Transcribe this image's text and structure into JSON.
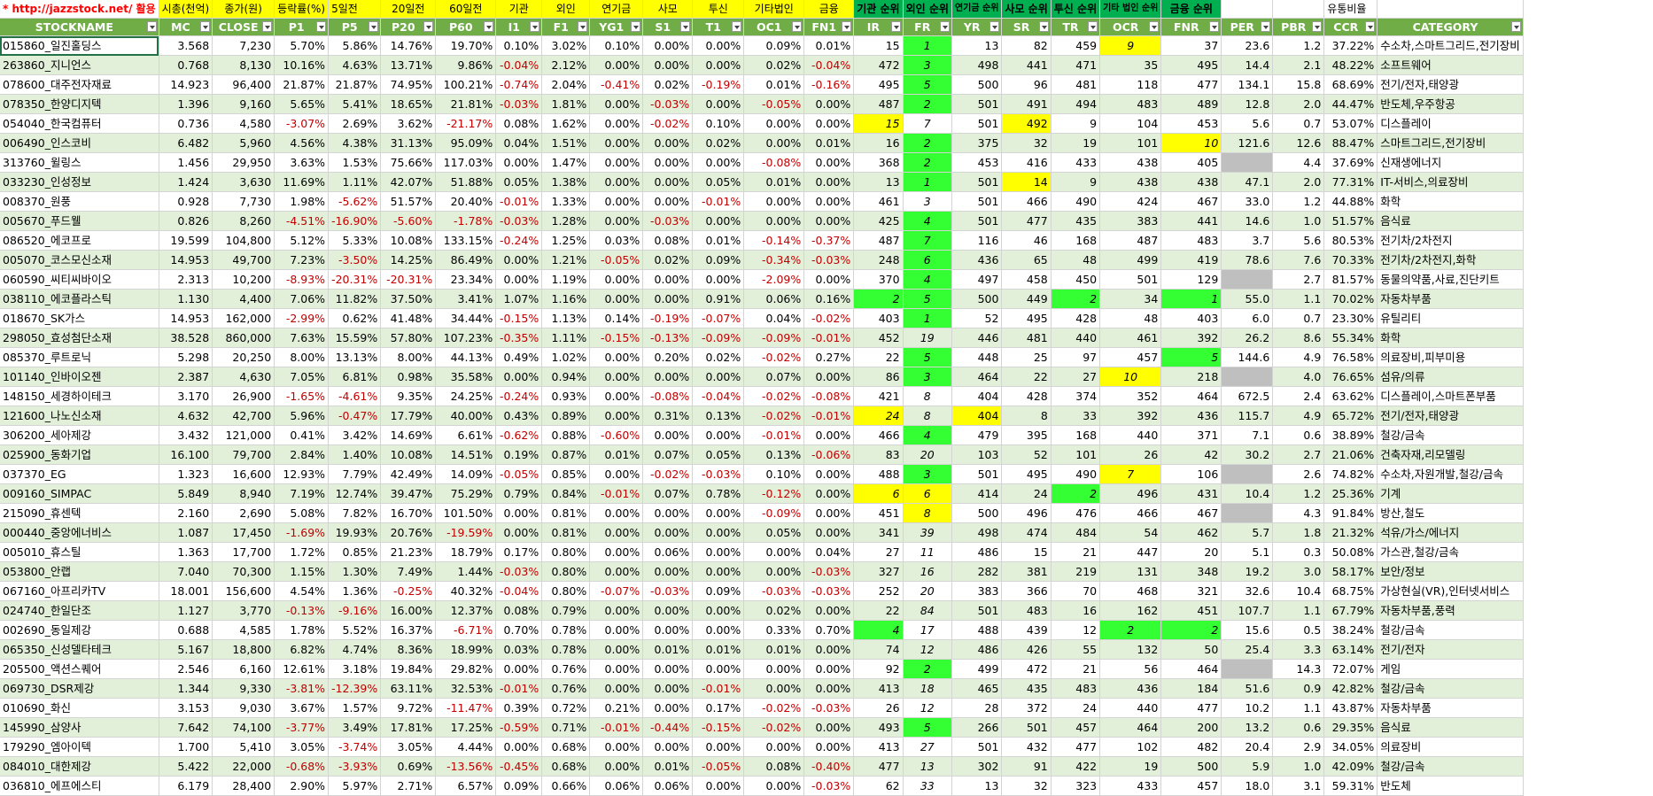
{
  "top_labels": [
    "* http://jazzstock.net/ 활용",
    "시총(천억)",
    "종가(원)",
    "등락률(%)",
    "5일전",
    "20일전",
    "60일전",
    "기관",
    "외인",
    "연기금",
    "사모",
    "투신",
    "기타법인",
    "금융",
    "기관 순위",
    "외인 순위",
    "연기금 순위",
    "사모 순위",
    "투신 순위",
    "기타 법인 순위",
    "금융 순위",
    "",
    "",
    "유통비율",
    ""
  ],
  "headers": [
    "STOCKNAME",
    "MC",
    "CLOSE",
    "P1",
    "P5",
    "P20",
    "P60",
    "I1",
    "F1",
    "YG1",
    "S1",
    "T1",
    "OC1",
    "FN1",
    "IR",
    "FR",
    "YR",
    "SR",
    "TR",
    "OCR",
    "FNR",
    "PER",
    "PBR",
    "CCR",
    "CATEGORY"
  ],
  "rows": [
    [
      "015860_일진홀딩스",
      "3.568",
      "7,230",
      "5.70%",
      "5.86%",
      "14.76%",
      "19.70%",
      "0.10%",
      "3.02%",
      "0.10%",
      "0.00%",
      "0.00%",
      "0.09%",
      "0.01%",
      "15",
      "1",
      "13",
      "82",
      "459",
      "9",
      "37",
      "23.6",
      "1.2",
      "37.22%",
      "수소차,스마트그리드,전기장비"
    ],
    [
      "263860_지니언스",
      "0.768",
      "8,130",
      "10.16%",
      "4.63%",
      "13.71%",
      "9.86%",
      "-0.04%",
      "2.12%",
      "0.00%",
      "0.00%",
      "0.00%",
      "0.02%",
      "-0.04%",
      "472",
      "3",
      "498",
      "441",
      "471",
      "35",
      "495",
      "14.4",
      "2.1",
      "48.22%",
      "소프트웨어"
    ],
    [
      "078600_대주전자재료",
      "14.923",
      "96,400",
      "21.87%",
      "21.87%",
      "74.95%",
      "100.21%",
      "-0.74%",
      "2.04%",
      "-0.41%",
      "0.02%",
      "-0.19%",
      "0.01%",
      "-0.16%",
      "495",
      "5",
      "500",
      "96",
      "481",
      "118",
      "477",
      "134.1",
      "15.8",
      "68.69%",
      "전기/전자,태양광"
    ],
    [
      "078350_한양디지텍",
      "1.396",
      "9,160",
      "5.65%",
      "5.41%",
      "18.65%",
      "21.81%",
      "-0.03%",
      "1.81%",
      "0.00%",
      "-0.03%",
      "0.00%",
      "-0.05%",
      "0.00%",
      "487",
      "2",
      "501",
      "491",
      "494",
      "483",
      "489",
      "12.8",
      "2.0",
      "44.47%",
      "반도체,우주항공"
    ],
    [
      "054040_한국컴퓨터",
      "0.736",
      "4,580",
      "-3.07%",
      "2.69%",
      "3.62%",
      "-21.17%",
      "0.08%",
      "1.62%",
      "0.00%",
      "-0.02%",
      "0.10%",
      "0.00%",
      "0.00%",
      "15",
      "7",
      "501",
      "492",
      "9",
      "104",
      "453",
      "5.6",
      "0.7",
      "53.07%",
      "디스플레이"
    ],
    [
      "006490_인스코비",
      "6.482",
      "5,960",
      "4.56%",
      "4.38%",
      "31.13%",
      "95.09%",
      "0.04%",
      "1.51%",
      "0.00%",
      "0.00%",
      "0.02%",
      "0.00%",
      "0.01%",
      "16",
      "2",
      "375",
      "32",
      "19",
      "101",
      "10",
      "121.6",
      "12.6",
      "88.47%",
      "스마트그리드,전기장비"
    ],
    [
      "313760_윌링스",
      "1.456",
      "29,950",
      "3.63%",
      "1.53%",
      "75.66%",
      "117.03%",
      "0.00%",
      "1.47%",
      "0.00%",
      "0.00%",
      "0.00%",
      "-0.08%",
      "0.00%",
      "368",
      "2",
      "453",
      "416",
      "433",
      "438",
      "405",
      "",
      "4.4",
      "37.69%",
      "신재생에너지"
    ],
    [
      "033230_인성정보",
      "1.424",
      "3,630",
      "11.69%",
      "1.11%",
      "42.07%",
      "51.88%",
      "0.05%",
      "1.38%",
      "0.00%",
      "0.00%",
      "0.05%",
      "0.01%",
      "0.00%",
      "13",
      "1",
      "501",
      "14",
      "9",
      "438",
      "438",
      "47.1",
      "2.0",
      "77.31%",
      "IT-서비스,의료장비"
    ],
    [
      "008370_원풍",
      "0.928",
      "7,730",
      "1.98%",
      "-5.62%",
      "51.57%",
      "20.40%",
      "-0.01%",
      "1.33%",
      "0.00%",
      "0.00%",
      "-0.01%",
      "0.00%",
      "0.00%",
      "461",
      "3",
      "501",
      "466",
      "490",
      "424",
      "467",
      "33.0",
      "1.2",
      "44.88%",
      "화학"
    ],
    [
      "005670_푸드웰",
      "0.826",
      "8,260",
      "-4.51%",
      "-16.90%",
      "-5.60%",
      "-1.78%",
      "-0.03%",
      "1.28%",
      "0.00%",
      "-0.03%",
      "0.00%",
      "0.00%",
      "0.00%",
      "425",
      "4",
      "501",
      "477",
      "435",
      "383",
      "441",
      "14.6",
      "1.0",
      "51.57%",
      "음식료"
    ],
    [
      "086520_에코프로",
      "19.599",
      "104,800",
      "5.12%",
      "5.33%",
      "10.08%",
      "133.15%",
      "-0.24%",
      "1.25%",
      "0.03%",
      "0.08%",
      "0.01%",
      "-0.14%",
      "-0.37%",
      "487",
      "7",
      "116",
      "46",
      "168",
      "487",
      "483",
      "3.7",
      "5.6",
      "80.53%",
      "전기차/2차전지"
    ],
    [
      "005070_코스모신소재",
      "14.953",
      "49,700",
      "7.23%",
      "-3.50%",
      "14.25%",
      "86.49%",
      "0.00%",
      "1.21%",
      "-0.05%",
      "0.02%",
      "0.09%",
      "-0.34%",
      "-0.03%",
      "248",
      "6",
      "436",
      "65",
      "48",
      "499",
      "419",
      "78.6",
      "7.6",
      "70.33%",
      "전기차/2차전지,화학"
    ],
    [
      "060590_씨티씨바이오",
      "2.313",
      "10,200",
      "-8.93%",
      "-20.31%",
      "-20.31%",
      "23.34%",
      "0.00%",
      "1.19%",
      "0.00%",
      "0.00%",
      "0.00%",
      "-2.09%",
      "0.00%",
      "370",
      "4",
      "497",
      "458",
      "450",
      "501",
      "129",
      "",
      "2.7",
      "81.57%",
      "동물의약품,사료,진단키트"
    ],
    [
      "038110_에코플라스틱",
      "1.130",
      "4,400",
      "7.06%",
      "11.82%",
      "37.50%",
      "3.41%",
      "1.07%",
      "1.16%",
      "0.00%",
      "0.00%",
      "0.91%",
      "0.06%",
      "0.16%",
      "2",
      "5",
      "500",
      "449",
      "2",
      "34",
      "1",
      "55.0",
      "1.1",
      "70.02%",
      "자동차부품"
    ],
    [
      "018670_SK가스",
      "14.953",
      "162,000",
      "-2.99%",
      "0.62%",
      "41.48%",
      "34.44%",
      "-0.15%",
      "1.13%",
      "0.14%",
      "-0.19%",
      "-0.07%",
      "0.04%",
      "-0.02%",
      "403",
      "1",
      "52",
      "495",
      "428",
      "48",
      "403",
      "6.0",
      "0.7",
      "23.30%",
      "유틸리티"
    ],
    [
      "298050_효성첨단소재",
      "38.528",
      "860,000",
      "7.63%",
      "15.59%",
      "57.80%",
      "107.23%",
      "-0.35%",
      "1.11%",
      "-0.15%",
      "-0.13%",
      "-0.09%",
      "-0.09%",
      "-0.01%",
      "452",
      "19",
      "446",
      "481",
      "440",
      "461",
      "392",
      "26.2",
      "8.6",
      "55.34%",
      "화학"
    ],
    [
      "085370_루트로닉",
      "5.298",
      "20,250",
      "8.00%",
      "13.13%",
      "8.00%",
      "44.13%",
      "0.49%",
      "1.02%",
      "0.00%",
      "0.20%",
      "0.02%",
      "-0.02%",
      "0.27%",
      "22",
      "5",
      "448",
      "25",
      "97",
      "457",
      "5",
      "144.6",
      "4.9",
      "76.58%",
      "의료장비,피부미용"
    ],
    [
      "101140_인바이오젠",
      "2.387",
      "4,630",
      "7.05%",
      "6.81%",
      "0.98%",
      "35.58%",
      "0.00%",
      "0.94%",
      "0.00%",
      "0.00%",
      "0.00%",
      "0.07%",
      "0.00%",
      "86",
      "3",
      "464",
      "22",
      "27",
      "10",
      "218",
      "",
      "4.0",
      "76.65%",
      "섬유/의류"
    ],
    [
      "148150_세경하이테크",
      "3.170",
      "26,900",
      "-1.65%",
      "-4.61%",
      "9.35%",
      "24.25%",
      "-0.24%",
      "0.93%",
      "0.00%",
      "-0.08%",
      "-0.04%",
      "-0.02%",
      "-0.08%",
      "421",
      "8",
      "404",
      "428",
      "374",
      "352",
      "464",
      "672.5",
      "2.4",
      "63.62%",
      "디스플레이,스마트폰부품"
    ],
    [
      "121600_나노신소재",
      "4.632",
      "42,700",
      "5.96%",
      "-0.47%",
      "17.79%",
      "40.00%",
      "0.43%",
      "0.89%",
      "0.00%",
      "0.31%",
      "0.13%",
      "-0.02%",
      "-0.01%",
      "24",
      "8",
      "404",
      "8",
      "33",
      "392",
      "436",
      "115.7",
      "4.9",
      "65.72%",
      "전기/전자,태양광"
    ],
    [
      "306200_세아제강",
      "3.432",
      "121,000",
      "0.41%",
      "3.42%",
      "14.69%",
      "6.61%",
      "-0.62%",
      "0.88%",
      "-0.60%",
      "0.00%",
      "0.00%",
      "-0.01%",
      "0.00%",
      "466",
      "4",
      "479",
      "395",
      "168",
      "440",
      "371",
      "7.1",
      "0.6",
      "38.89%",
      "철강/금속"
    ],
    [
      "025900_동화기업",
      "16.100",
      "79,700",
      "2.84%",
      "1.40%",
      "10.08%",
      "14.51%",
      "0.19%",
      "0.87%",
      "0.01%",
      "0.07%",
      "0.05%",
      "0.13%",
      "-0.06%",
      "83",
      "20",
      "103",
      "52",
      "101",
      "26",
      "42",
      "30.2",
      "2.7",
      "21.06%",
      "건축자재,리모델링"
    ],
    [
      "037370_EG",
      "1.323",
      "16,600",
      "12.93%",
      "7.79%",
      "42.49%",
      "14.09%",
      "-0.05%",
      "0.85%",
      "0.00%",
      "-0.02%",
      "-0.03%",
      "0.10%",
      "0.00%",
      "488",
      "3",
      "501",
      "495",
      "490",
      "7",
      "106",
      "",
      "2.6",
      "74.82%",
      "수소차,자원개발,철강/금속"
    ],
    [
      "009160_SIMPAC",
      "5.849",
      "8,940",
      "7.19%",
      "12.74%",
      "39.47%",
      "75.29%",
      "0.79%",
      "0.84%",
      "-0.01%",
      "0.07%",
      "0.78%",
      "-0.12%",
      "0.00%",
      "6",
      "6",
      "414",
      "24",
      "2",
      "496",
      "431",
      "10.4",
      "1.2",
      "25.36%",
      "기계"
    ],
    [
      "215090_휴센텍",
      "2.160",
      "2,690",
      "5.08%",
      "7.82%",
      "16.70%",
      "101.50%",
      "0.00%",
      "0.81%",
      "0.00%",
      "0.00%",
      "0.00%",
      "-0.09%",
      "0.00%",
      "451",
      "8",
      "500",
      "496",
      "476",
      "466",
      "467",
      "",
      "4.3",
      "91.84%",
      "방산,철도"
    ],
    [
      "000440_중앙에너비스",
      "1.087",
      "17,450",
      "-1.69%",
      "19.93%",
      "20.76%",
      "-19.59%",
      "0.00%",
      "0.81%",
      "0.00%",
      "0.00%",
      "0.00%",
      "0.05%",
      "0.00%",
      "341",
      "39",
      "498",
      "474",
      "484",
      "54",
      "462",
      "5.7",
      "1.8",
      "21.32%",
      "석유/가스/에너지"
    ],
    [
      "005010_휴스틸",
      "1.363",
      "17,700",
      "1.72%",
      "0.85%",
      "21.23%",
      "18.79%",
      "0.17%",
      "0.80%",
      "0.00%",
      "0.06%",
      "0.00%",
      "0.00%",
      "0.04%",
      "27",
      "11",
      "486",
      "15",
      "21",
      "447",
      "20",
      "5.1",
      "0.3",
      "50.08%",
      "가스관,철강/금속"
    ],
    [
      "053800_안랩",
      "7.040",
      "70,300",
      "1.15%",
      "1.30%",
      "7.49%",
      "1.44%",
      "-0.03%",
      "0.80%",
      "0.00%",
      "0.00%",
      "0.00%",
      "0.00%",
      "-0.03%",
      "327",
      "16",
      "282",
      "381",
      "219",
      "131",
      "348",
      "19.2",
      "3.0",
      "58.17%",
      "보안/정보"
    ],
    [
      "067160_아프리카TV",
      "18.001",
      "156,600",
      "4.54%",
      "1.36%",
      "-0.25%",
      "40.32%",
      "-0.04%",
      "0.80%",
      "-0.07%",
      "-0.03%",
      "0.09%",
      "-0.03%",
      "-0.03%",
      "252",
      "20",
      "383",
      "366",
      "70",
      "468",
      "321",
      "32.6",
      "10.4",
      "68.75%",
      "가상현실(VR),인터넷서비스"
    ],
    [
      "024740_한일단조",
      "1.127",
      "3,770",
      "-0.13%",
      "-9.16%",
      "16.00%",
      "12.37%",
      "0.08%",
      "0.79%",
      "0.00%",
      "0.00%",
      "0.00%",
      "0.02%",
      "0.00%",
      "22",
      "84",
      "501",
      "483",
      "16",
      "162",
      "451",
      "107.7",
      "1.1",
      "67.79%",
      "자동차부품,풍력"
    ],
    [
      "002690_동일제강",
      "0.688",
      "4,585",
      "1.78%",
      "5.52%",
      "16.37%",
      "-6.71%",
      "0.70%",
      "0.78%",
      "0.00%",
      "0.00%",
      "0.00%",
      "0.33%",
      "0.70%",
      "4",
      "17",
      "488",
      "439",
      "12",
      "2",
      "2",
      "15.6",
      "0.5",
      "38.24%",
      "철강/금속"
    ],
    [
      "065350_신성델타테크",
      "5.167",
      "18,800",
      "6.82%",
      "4.74%",
      "8.36%",
      "18.99%",
      "0.03%",
      "0.78%",
      "0.00%",
      "0.01%",
      "0.01%",
      "0.01%",
      "0.00%",
      "74",
      "12",
      "486",
      "426",
      "55",
      "132",
      "50",
      "25.4",
      "3.3",
      "63.14%",
      "전기/전자"
    ],
    [
      "205500_액션스퀘어",
      "2.546",
      "6,160",
      "12.61%",
      "3.18%",
      "19.84%",
      "29.82%",
      "0.00%",
      "0.76%",
      "0.00%",
      "0.00%",
      "0.00%",
      "0.00%",
      "0.00%",
      "92",
      "2",
      "499",
      "472",
      "21",
      "56",
      "464",
      "",
      "14.3",
      "72.07%",
      "게임"
    ],
    [
      "069730_DSR제강",
      "1.344",
      "9,330",
      "-3.81%",
      "-12.39%",
      "63.11%",
      "32.53%",
      "-0.01%",
      "0.76%",
      "0.00%",
      "0.00%",
      "-0.01%",
      "0.00%",
      "0.00%",
      "413",
      "18",
      "465",
      "435",
      "483",
      "436",
      "184",
      "51.6",
      "0.9",
      "42.82%",
      "철강/금속"
    ],
    [
      "010690_화신",
      "3.153",
      "9,030",
      "3.67%",
      "1.57%",
      "9.72%",
      "-11.47%",
      "0.39%",
      "0.72%",
      "0.21%",
      "0.00%",
      "0.17%",
      "-0.02%",
      "-0.03%",
      "26",
      "12",
      "28",
      "372",
      "24",
      "440",
      "477",
      "10.2",
      "1.1",
      "43.87%",
      "자동차부품"
    ],
    [
      "145990_삼양사",
      "7.642",
      "74,100",
      "-3.77%",
      "3.49%",
      "17.81%",
      "17.25%",
      "-0.59%",
      "0.71%",
      "-0.01%",
      "-0.44%",
      "-0.15%",
      "-0.02%",
      "0.00%",
      "493",
      "5",
      "266",
      "501",
      "457",
      "464",
      "200",
      "13.2",
      "0.6",
      "29.35%",
      "음식료"
    ],
    [
      "179290_엠아이텍",
      "1.700",
      "5,410",
      "3.05%",
      "-3.74%",
      "3.05%",
      "4.44%",
      "0.00%",
      "0.68%",
      "0.00%",
      "0.00%",
      "0.00%",
      "0.00%",
      "0.00%",
      "413",
      "27",
      "501",
      "432",
      "477",
      "102",
      "482",
      "20.4",
      "2.9",
      "34.05%",
      "의료장비"
    ],
    [
      "084010_대한제강",
      "5.422",
      "22,000",
      "-0.68%",
      "-3.93%",
      "0.69%",
      "-13.56%",
      "-0.45%",
      "0.68%",
      "0.00%",
      "0.01%",
      "-0.05%",
      "0.08%",
      "-0.40%",
      "477",
      "13",
      "302",
      "91",
      "422",
      "19",
      "500",
      "5.9",
      "1.0",
      "42.09%",
      "철강/금속"
    ],
    [
      "036810_에프에스티",
      "6.179",
      "28,400",
      "2.90%",
      "5.97%",
      "2.71%",
      "6.57%",
      "0.09%",
      "0.66%",
      "0.06%",
      "0.06%",
      "0.00%",
      "0.00%",
      "-0.03%",
      "62",
      "33",
      "13",
      "32",
      "323",
      "433",
      "457",
      "18.0",
      "3.1",
      "59.31%",
      "반도체"
    ]
  ],
  "highlight_yellow": [
    [
      0,
      19
    ],
    [
      4,
      14
    ],
    [
      4,
      17
    ],
    [
      5,
      20
    ],
    [
      7,
      17
    ],
    [
      17,
      19
    ],
    [
      19,
      14
    ],
    [
      19,
      16
    ],
    [
      22,
      19
    ],
    [
      23,
      14
    ],
    [
      23,
      15
    ],
    [
      24,
      15
    ]
  ],
  "highlight_green": [
    [
      0,
      15
    ],
    [
      1,
      15
    ],
    [
      2,
      15
    ],
    [
      3,
      15
    ],
    [
      5,
      15
    ],
    [
      6,
      15
    ],
    [
      7,
      15
    ],
    [
      9,
      15
    ],
    [
      10,
      15
    ],
    [
      11,
      15
    ],
    [
      12,
      15
    ],
    [
      13,
      14
    ],
    [
      13,
      15
    ],
    [
      13,
      18
    ],
    [
      13,
      20
    ],
    [
      14,
      15
    ],
    [
      16,
      15
    ],
    [
      16,
      20
    ],
    [
      17,
      15
    ],
    [
      20,
      15
    ],
    [
      22,
      15
    ],
    [
      23,
      18
    ],
    [
      30,
      14
    ],
    [
      30,
      19
    ],
    [
      30,
      20
    ],
    [
      32,
      15
    ],
    [
      35,
      15
    ]
  ],
  "highlight_grey": [
    [
      6,
      21
    ],
    [
      12,
      21
    ],
    [
      17,
      21
    ],
    [
      22,
      21
    ],
    [
      24,
      21
    ],
    [
      32,
      21
    ]
  ],
  "colors": {
    "header_green": "#70ad47",
    "row_band": "#e2efd9",
    "yellow": "#ffff00",
    "bright_green": "#33ff33",
    "grey": "#bfbfbf",
    "negative": "#c00000"
  }
}
